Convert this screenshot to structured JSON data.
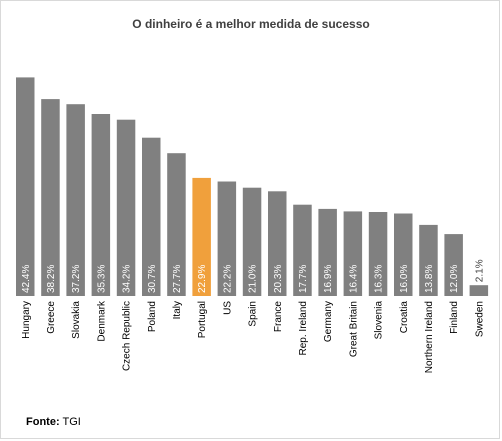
{
  "chart_data": {
    "type": "bar",
    "title": "O dinheiro é a melhor medida de sucesso",
    "categories": [
      "Hungary",
      "Greece",
      "Slovakia",
      "Denmark",
      "Czech Republic",
      "Poland",
      "Italy",
      "Portugal",
      "US",
      "Spain",
      "France",
      "Rep. Ireland",
      "Germany",
      "Great Britain",
      "Slovenia",
      "Croatia",
      "Northern Ireland",
      "Finland",
      "Sweden"
    ],
    "values": [
      42.4,
      38.2,
      37.2,
      35.3,
      34.2,
      30.7,
      27.7,
      22.9,
      22.2,
      21.0,
      20.3,
      17.7,
      16.9,
      16.4,
      16.3,
      16.0,
      13.8,
      12.0,
      2.1
    ],
    "data_labels": [
      "42.4%",
      "38.2%",
      "37.2%",
      "35.3%",
      "34.2%",
      "30.7%",
      "27.7%",
      "22.9%",
      "22.2%",
      "21.0%",
      "20.3%",
      "17.7%",
      "16.9%",
      "16.4%",
      "16.3%",
      "16.0%",
      "13.8%",
      "12.0%",
      "2.1%"
    ],
    "highlight": "Portugal",
    "bar_color": "#808080",
    "highlight_color": "#f0a03c",
    "xlabel": "",
    "ylabel": "",
    "ylim": [
      0,
      45
    ],
    "grid": false,
    "legend": "none"
  },
  "source": {
    "label": "Fonte",
    "separator": ":",
    "text": " TGI"
  }
}
